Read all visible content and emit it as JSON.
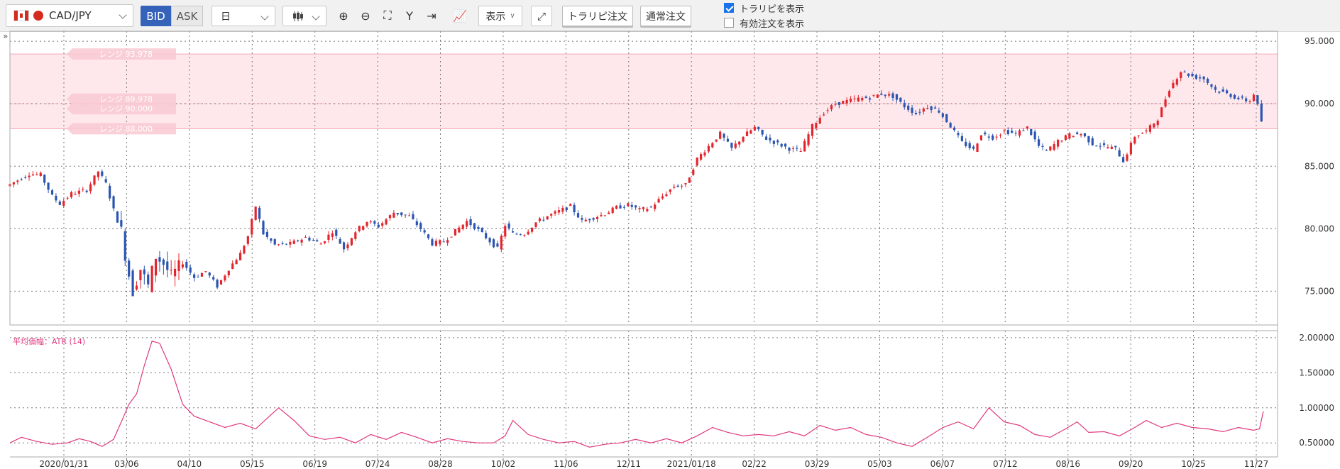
{
  "toolbar": {
    "pair": "CAD/JPY",
    "bid": "BID",
    "ask": "ASK",
    "period": "日",
    "display": "表示",
    "trap_order": "トラリピ注文",
    "normal_order": "通常注文",
    "show_trap": "トラリピを表示",
    "show_active": "有効注文を表示"
  },
  "chart_data": [
    {
      "type": "candlestick",
      "ylim": [
        72.3,
        95.8
      ],
      "yticks": [
        "95.000",
        "90.000",
        "85.000",
        "80.000",
        "75.000"
      ],
      "xticks": [
        "2020/01/31",
        "03/06",
        "04/10",
        "05/15",
        "06/19",
        "07/24",
        "08/28",
        "10/02",
        "11/06",
        "12/11",
        "2021/01/18",
        "02/22",
        "03/29",
        "05/03",
        "06/07",
        "07/12",
        "08/16",
        "09/20",
        "10/25",
        "11/27"
      ],
      "range_band": [
        88.0,
        93.978
      ],
      "range_labels": [
        "レンジ 93.978",
        "レンジ 89.978",
        "レンジ 90.000",
        "レンジ 88.000"
      ],
      "price_path": [
        {
          "d": 0,
          "v": 83.4
        },
        {
          "d": 5,
          "v": 83.8
        },
        {
          "d": 12,
          "v": 84.4
        },
        {
          "d": 18,
          "v": 84.3
        },
        {
          "d": 24,
          "v": 82.6
        },
        {
          "d": 28,
          "v": 82.0
        },
        {
          "d": 34,
          "v": 82.8
        },
        {
          "d": 42,
          "v": 83.1
        },
        {
          "d": 48,
          "v": 84.6
        },
        {
          "d": 52,
          "v": 83.6
        },
        {
          "d": 56,
          "v": 81.5
        },
        {
          "d": 60,
          "v": 79.8
        },
        {
          "d": 63,
          "v": 77.0
        },
        {
          "d": 66,
          "v": 75.0
        },
        {
          "d": 70,
          "v": 76.8
        },
        {
          "d": 74,
          "v": 75.4
        },
        {
          "d": 78,
          "v": 77.8
        },
        {
          "d": 82,
          "v": 77.2
        },
        {
          "d": 86,
          "v": 76.2
        },
        {
          "d": 92,
          "v": 77.3
        },
        {
          "d": 98,
          "v": 76.1
        },
        {
          "d": 104,
          "v": 76.6
        },
        {
          "d": 110,
          "v": 75.4
        },
        {
          "d": 116,
          "v": 76.8
        },
        {
          "d": 122,
          "v": 78.0
        },
        {
          "d": 126,
          "v": 79.4
        },
        {
          "d": 130,
          "v": 81.8
        },
        {
          "d": 134,
          "v": 79.6
        },
        {
          "d": 140,
          "v": 78.7
        },
        {
          "d": 148,
          "v": 78.8
        },
        {
          "d": 156,
          "v": 79.3
        },
        {
          "d": 164,
          "v": 78.8
        },
        {
          "d": 170,
          "v": 79.8
        },
        {
          "d": 176,
          "v": 78.4
        },
        {
          "d": 182,
          "v": 79.8
        },
        {
          "d": 188,
          "v": 80.6
        },
        {
          "d": 194,
          "v": 80.2
        },
        {
          "d": 202,
          "v": 81.3
        },
        {
          "d": 210,
          "v": 81.0
        },
        {
          "d": 216,
          "v": 80.0
        },
        {
          "d": 222,
          "v": 78.8
        },
        {
          "d": 228,
          "v": 79.0
        },
        {
          "d": 234,
          "v": 79.8
        },
        {
          "d": 240,
          "v": 80.6
        },
        {
          "d": 246,
          "v": 79.9
        },
        {
          "d": 252,
          "v": 79.0
        },
        {
          "d": 256,
          "v": 78.4
        },
        {
          "d": 260,
          "v": 80.3
        },
        {
          "d": 264,
          "v": 79.6
        },
        {
          "d": 270,
          "v": 79.6
        },
        {
          "d": 276,
          "v": 80.5
        },
        {
          "d": 282,
          "v": 81.0
        },
        {
          "d": 288,
          "v": 81.4
        },
        {
          "d": 294,
          "v": 81.8
        },
        {
          "d": 300,
          "v": 80.6
        },
        {
          "d": 306,
          "v": 80.9
        },
        {
          "d": 312,
          "v": 81.2
        },
        {
          "d": 318,
          "v": 81.7
        },
        {
          "d": 324,
          "v": 81.9
        },
        {
          "d": 330,
          "v": 81.5
        },
        {
          "d": 336,
          "v": 81.7
        },
        {
          "d": 342,
          "v": 82.6
        },
        {
          "d": 348,
          "v": 83.4
        },
        {
          "d": 354,
          "v": 83.5
        },
        {
          "d": 360,
          "v": 85.6
        },
        {
          "d": 366,
          "v": 86.6
        },
        {
          "d": 372,
          "v": 87.6
        },
        {
          "d": 378,
          "v": 86.4
        },
        {
          "d": 384,
          "v": 87.4
        },
        {
          "d": 390,
          "v": 88.1
        },
        {
          "d": 396,
          "v": 87.2
        },
        {
          "d": 402,
          "v": 86.8
        },
        {
          "d": 408,
          "v": 86.4
        },
        {
          "d": 414,
          "v": 86.2
        },
        {
          "d": 420,
          "v": 88.2
        },
        {
          "d": 426,
          "v": 89.3
        },
        {
          "d": 432,
          "v": 90.0
        },
        {
          "d": 438,
          "v": 90.2
        },
        {
          "d": 444,
          "v": 90.4
        },
        {
          "d": 450,
          "v": 90.5
        },
        {
          "d": 456,
          "v": 90.8
        },
        {
          "d": 462,
          "v": 90.6
        },
        {
          "d": 468,
          "v": 89.8
        },
        {
          "d": 474,
          "v": 89.2
        },
        {
          "d": 480,
          "v": 89.8
        },
        {
          "d": 486,
          "v": 89.4
        },
        {
          "d": 492,
          "v": 88.2
        },
        {
          "d": 498,
          "v": 86.9
        },
        {
          "d": 504,
          "v": 86.3
        },
        {
          "d": 508,
          "v": 87.6
        },
        {
          "d": 514,
          "v": 87.3
        },
        {
          "d": 520,
          "v": 87.8
        },
        {
          "d": 526,
          "v": 87.6
        },
        {
          "d": 532,
          "v": 88.1
        },
        {
          "d": 538,
          "v": 86.6
        },
        {
          "d": 542,
          "v": 86.2
        },
        {
          "d": 548,
          "v": 87.0
        },
        {
          "d": 554,
          "v": 87.5
        },
        {
          "d": 560,
          "v": 87.6
        },
        {
          "d": 566,
          "v": 86.8
        },
        {
          "d": 572,
          "v": 86.6
        },
        {
          "d": 578,
          "v": 86.4
        },
        {
          "d": 582,
          "v": 85.4
        },
        {
          "d": 588,
          "v": 87.4
        },
        {
          "d": 594,
          "v": 87.8
        },
        {
          "d": 600,
          "v": 88.8
        },
        {
          "d": 606,
          "v": 91.2
        },
        {
          "d": 612,
          "v": 92.6
        },
        {
          "d": 618,
          "v": 92.2
        },
        {
          "d": 624,
          "v": 92.0
        },
        {
          "d": 630,
          "v": 91.1
        },
        {
          "d": 636,
          "v": 90.8
        },
        {
          "d": 642,
          "v": 90.4
        },
        {
          "d": 648,
          "v": 90.2
        },
        {
          "d": 651,
          "v": 91.1
        },
        {
          "d": 653,
          "v": 88.6
        }
      ]
    },
    {
      "type": "line",
      "title": "平均価幅：ATR (14)",
      "ylim": [
        0.3,
        2.1
      ],
      "yticks": [
        "2.00000",
        "1.50000",
        "1.00000",
        "0.50000"
      ],
      "series": [
        {
          "x": [
            0,
            6,
            14,
            22,
            30,
            36,
            42,
            48,
            54,
            58,
            62,
            66,
            70,
            74,
            78,
            84,
            90,
            96,
            104,
            112,
            120,
            128,
            134,
            140,
            148,
            156,
            164,
            172,
            180,
            188,
            196,
            204,
            212,
            220,
            228,
            236,
            244,
            252,
            258,
            262,
            270,
            278,
            286,
            294,
            302,
            310,
            318,
            326,
            334,
            342,
            350,
            358,
            366,
            374,
            382,
            390,
            398,
            406,
            414,
            422,
            430,
            438,
            446,
            454,
            462,
            470,
            478,
            486,
            494,
            502,
            510,
            518,
            526,
            534,
            542,
            550,
            556,
            562,
            570,
            578,
            586,
            592,
            600,
            608,
            616,
            624,
            632,
            640,
            648,
            651,
            653
          ],
          "values": [
            0.5,
            0.58,
            0.52,
            0.48,
            0.5,
            0.56,
            0.52,
            0.45,
            0.55,
            0.8,
            1.05,
            1.2,
            1.6,
            1.95,
            1.92,
            1.55,
            1.05,
            0.88,
            0.8,
            0.72,
            0.78,
            0.7,
            0.85,
            1.0,
            0.82,
            0.6,
            0.55,
            0.58,
            0.5,
            0.62,
            0.55,
            0.65,
            0.58,
            0.5,
            0.56,
            0.52,
            0.5,
            0.5,
            0.6,
            0.82,
            0.62,
            0.55,
            0.5,
            0.52,
            0.44,
            0.48,
            0.5,
            0.55,
            0.5,
            0.56,
            0.5,
            0.6,
            0.72,
            0.65,
            0.6,
            0.62,
            0.6,
            0.66,
            0.6,
            0.75,
            0.68,
            0.72,
            0.62,
            0.58,
            0.5,
            0.45,
            0.58,
            0.72,
            0.8,
            0.7,
            1.0,
            0.8,
            0.75,
            0.62,
            0.58,
            0.7,
            0.8,
            0.65,
            0.66,
            0.6,
            0.72,
            0.82,
            0.72,
            0.78,
            0.72,
            0.7,
            0.66,
            0.72,
            0.68,
            0.7,
            0.95
          ]
        }
      ]
    }
  ]
}
